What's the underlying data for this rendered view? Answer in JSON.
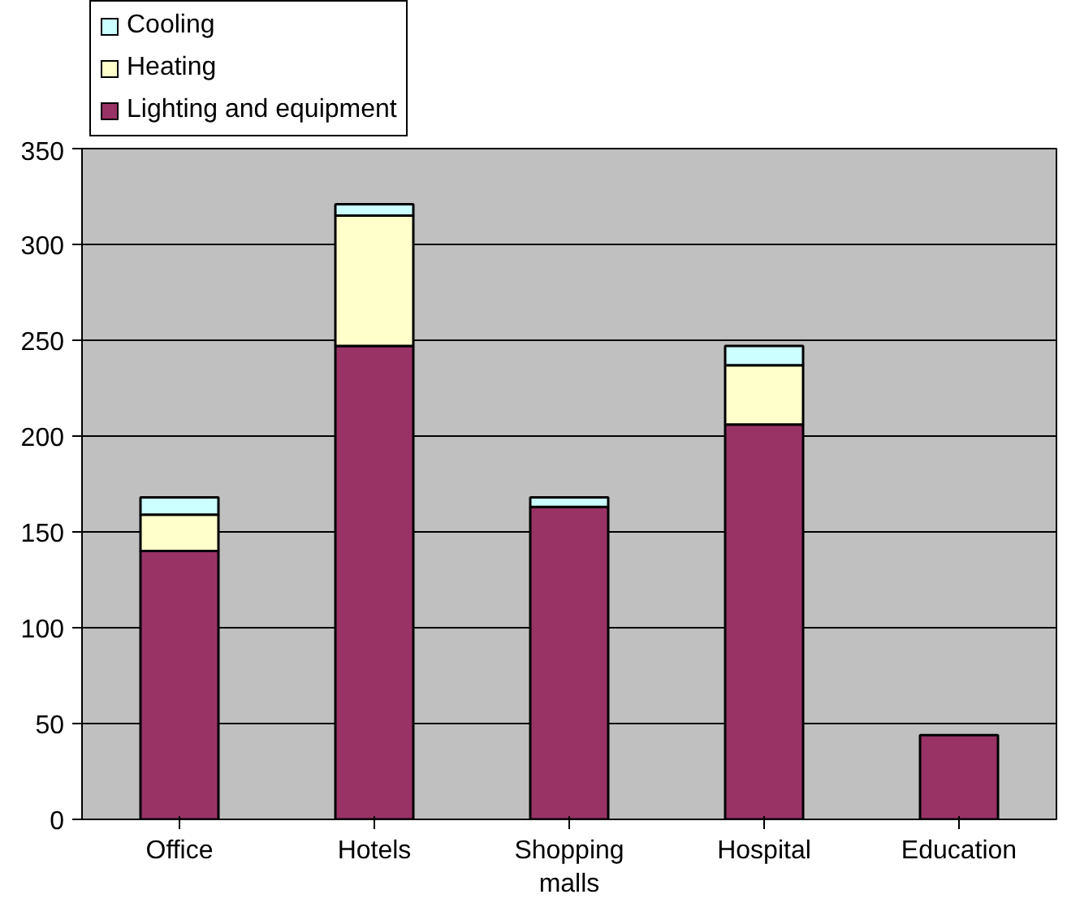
{
  "chart_data": {
    "type": "bar",
    "stacked": true,
    "categories": [
      "Office",
      "Hotels",
      "Shopping\nmalls",
      "Hospital",
      "Education"
    ],
    "series": [
      {
        "name": "Lighting and equipment",
        "color": "#993366",
        "values": [
          140,
          247,
          163,
          206,
          44
        ]
      },
      {
        "name": "Heating",
        "color": "#ffffcc",
        "values": [
          19,
          68,
          null,
          31,
          null
        ]
      },
      {
        "name": "Cooling",
        "color": "#ccffff",
        "values": [
          9,
          6,
          5,
          10,
          null
        ]
      }
    ],
    "ylim": [
      0,
      350
    ],
    "yticks": [
      0,
      50,
      100,
      150,
      200,
      250,
      300,
      350
    ],
    "grid": "y",
    "legend": "top left"
  }
}
